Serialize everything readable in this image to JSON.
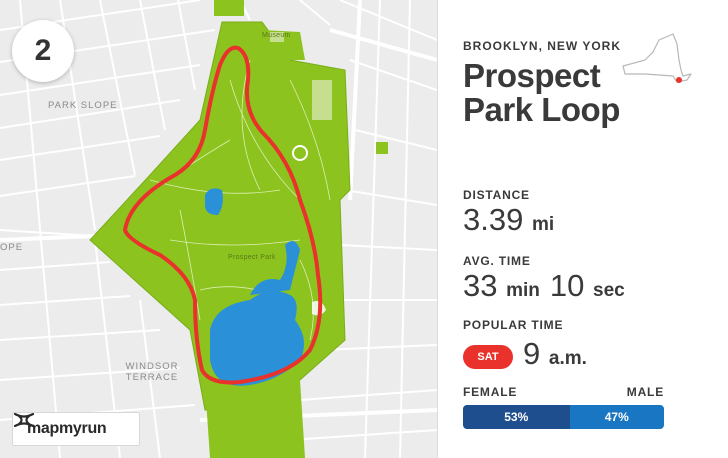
{
  "rank": "2",
  "map": {
    "neighborhood_labels": {
      "park_slope": "PARK SLOPE",
      "ope": "OPE",
      "windsor_terrace": "WINDSOR TERRACE"
    },
    "poi_labels": {
      "museum": "Museum",
      "lake": "Prospect Park"
    },
    "colors": {
      "park": "#8cc31f",
      "water": "#2a90d8",
      "route": "#e8322b",
      "road": "#ffffff",
      "background": "#ececec"
    }
  },
  "brand": {
    "name": "mapmyrun",
    "logo_icon": "under-armour-logo-icon"
  },
  "route": {
    "location": "BROOKLYN, NEW YORK",
    "title_line1": "Prospect",
    "title_line2": "Park Loop",
    "state_icon": "new-york-state-outline-icon"
  },
  "stats": {
    "distance": {
      "label": "DISTANCE",
      "value": "3.39",
      "unit": "mi"
    },
    "avg_time": {
      "label": "AVG. TIME",
      "minutes": "33",
      "minutes_unit": "min",
      "seconds": "10",
      "seconds_unit": "sec"
    },
    "popular_time": {
      "label": "POPULAR TIME",
      "day": "SAT",
      "time": "9",
      "time_unit": "a.m."
    }
  },
  "gender": {
    "female_label": "FEMALE",
    "male_label": "MALE",
    "female_pct": 53,
    "male_pct": 47,
    "female_text": "53%",
    "male_text": "47%"
  }
}
